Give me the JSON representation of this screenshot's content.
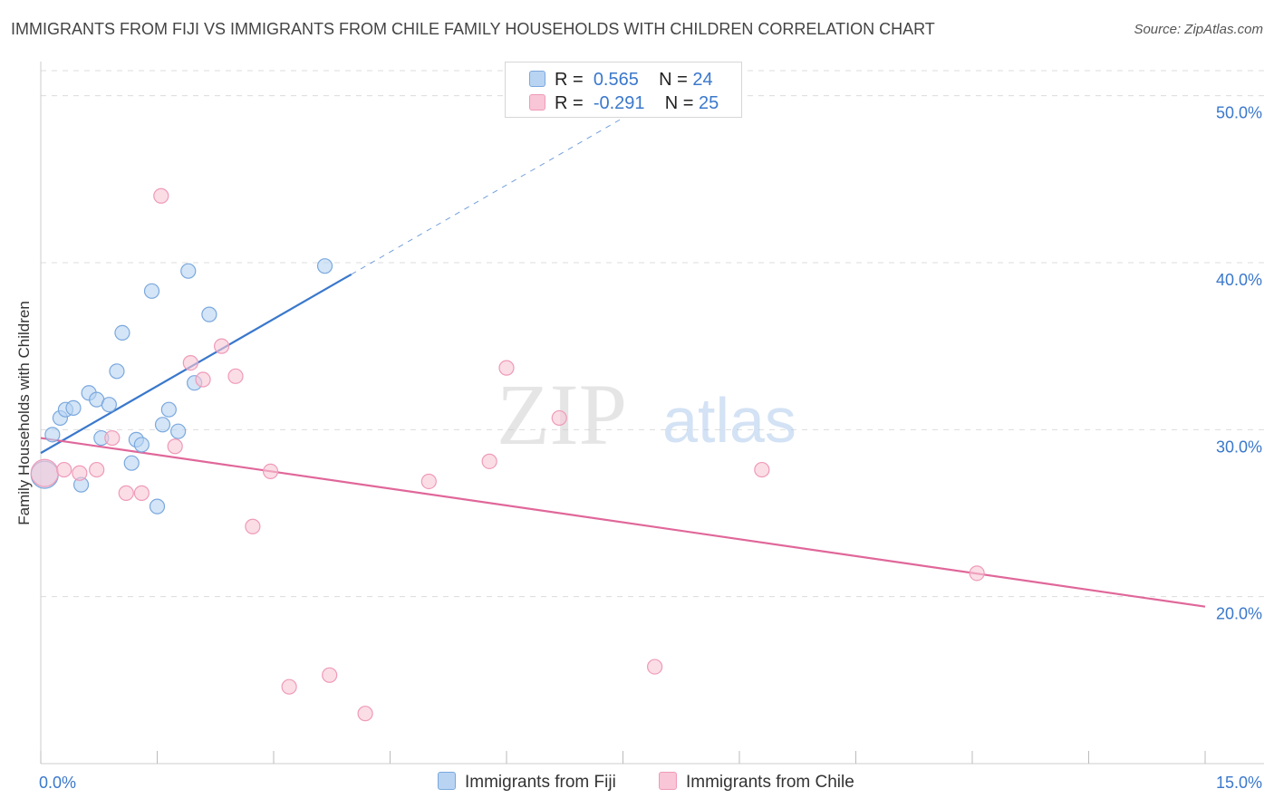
{
  "title": "IMMIGRANTS FROM FIJI VS IMMIGRANTS FROM CHILE FAMILY HOUSEHOLDS WITH CHILDREN CORRELATION CHART",
  "source": "Source: ZipAtlas.com",
  "watermark": {
    "zip": "ZIP",
    "atlas": "atlas"
  },
  "legend": {
    "fiji": {
      "r_label": "R =",
      "r_value": "0.565",
      "n_label": "N =",
      "n_value": "24"
    },
    "chile": {
      "r_label": "R =",
      "r_value": "-0.291",
      "n_label": "N =",
      "n_value": "25"
    }
  },
  "colors": {
    "fiji_fill": "#b8d4f2",
    "fiji_stroke": "#7aa8de",
    "fiji_line": "#3a78cc",
    "chile_fill": "#f8c6d6",
    "chile_stroke": "#ef9ab8",
    "chile_line": "#e0679a",
    "tick_label": "#3a78cc",
    "grid": "#dcdcdc"
  },
  "chart_data": {
    "type": "scatter",
    "title": "IMMIGRANTS FROM FIJI VS IMMIGRANTS FROM CHILE FAMILY HOUSEHOLDS WITH CHILDREN CORRELATION CHART",
    "xlabel": "",
    "ylabel": "Family Households with Children",
    "xlim": [
      0,
      15
    ],
    "ylim": [
      10,
      51.5
    ],
    "x_tick_labels": [
      "0.0%",
      "15.0%"
    ],
    "y_ticks": [
      20,
      30,
      40,
      50
    ],
    "y_tick_labels": [
      "20.0%",
      "30.0%",
      "40.0%",
      "50.0%"
    ],
    "grid": true,
    "series": [
      {
        "name": "Immigrants from Fiji",
        "points": [
          {
            "x": 0.05,
            "y": 27.3,
            "big": true
          },
          {
            "x": 0.15,
            "y": 29.7
          },
          {
            "x": 0.25,
            "y": 30.7
          },
          {
            "x": 0.32,
            "y": 31.2
          },
          {
            "x": 0.42,
            "y": 31.3
          },
          {
            "x": 0.52,
            "y": 26.7
          },
          {
            "x": 0.62,
            "y": 32.2
          },
          {
            "x": 0.72,
            "y": 31.8
          },
          {
            "x": 0.78,
            "y": 29.5
          },
          {
            "x": 0.88,
            "y": 31.5
          },
          {
            "x": 0.98,
            "y": 33.5
          },
          {
            "x": 1.05,
            "y": 35.8
          },
          {
            "x": 1.17,
            "y": 28.0
          },
          {
            "x": 1.23,
            "y": 29.4
          },
          {
            "x": 1.3,
            "y": 29.1
          },
          {
            "x": 1.43,
            "y": 38.3
          },
          {
            "x": 1.5,
            "y": 25.4
          },
          {
            "x": 1.57,
            "y": 30.3
          },
          {
            "x": 1.65,
            "y": 31.2
          },
          {
            "x": 1.77,
            "y": 29.9
          },
          {
            "x": 1.9,
            "y": 39.5
          },
          {
            "x": 1.98,
            "y": 32.8
          },
          {
            "x": 2.17,
            "y": 36.9
          },
          {
            "x": 3.66,
            "y": 39.8
          }
        ],
        "trend": {
          "x": [
            0,
            4.0
          ],
          "y": [
            28.6,
            39.3
          ],
          "dashed_extension": {
            "x": [
              4.0,
              7.7
            ],
            "y": [
              39.3,
              49.2
            ]
          }
        }
      },
      {
        "name": "Immigrants from Chile",
        "points": [
          {
            "x": 0.05,
            "y": 27.4,
            "big": true
          },
          {
            "x": 0.3,
            "y": 27.6
          },
          {
            "x": 0.5,
            "y": 27.4
          },
          {
            "x": 0.72,
            "y": 27.6
          },
          {
            "x": 0.92,
            "y": 29.5
          },
          {
            "x": 1.1,
            "y": 26.2
          },
          {
            "x": 1.3,
            "y": 26.2
          },
          {
            "x": 1.55,
            "y": 44.0
          },
          {
            "x": 1.73,
            "y": 29.0
          },
          {
            "x": 1.93,
            "y": 34.0
          },
          {
            "x": 2.09,
            "y": 33.0
          },
          {
            "x": 2.33,
            "y": 35.0
          },
          {
            "x": 2.51,
            "y": 33.2
          },
          {
            "x": 2.73,
            "y": 24.2
          },
          {
            "x": 2.96,
            "y": 27.5
          },
          {
            "x": 3.2,
            "y": 14.6
          },
          {
            "x": 3.72,
            "y": 15.3
          },
          {
            "x": 4.18,
            "y": 13.0
          },
          {
            "x": 5.0,
            "y": 26.9
          },
          {
            "x": 5.78,
            "y": 28.1
          },
          {
            "x": 6.0,
            "y": 33.7
          },
          {
            "x": 6.68,
            "y": 30.7
          },
          {
            "x": 7.91,
            "y": 15.8
          },
          {
            "x": 9.29,
            "y": 27.6
          },
          {
            "x": 12.06,
            "y": 21.4
          }
        ],
        "trend": {
          "x": [
            0,
            15
          ],
          "y": [
            29.5,
            19.4
          ]
        }
      }
    ]
  },
  "bottom_legend": [
    "Immigrants from Fiji",
    "Immigrants from Chile"
  ]
}
